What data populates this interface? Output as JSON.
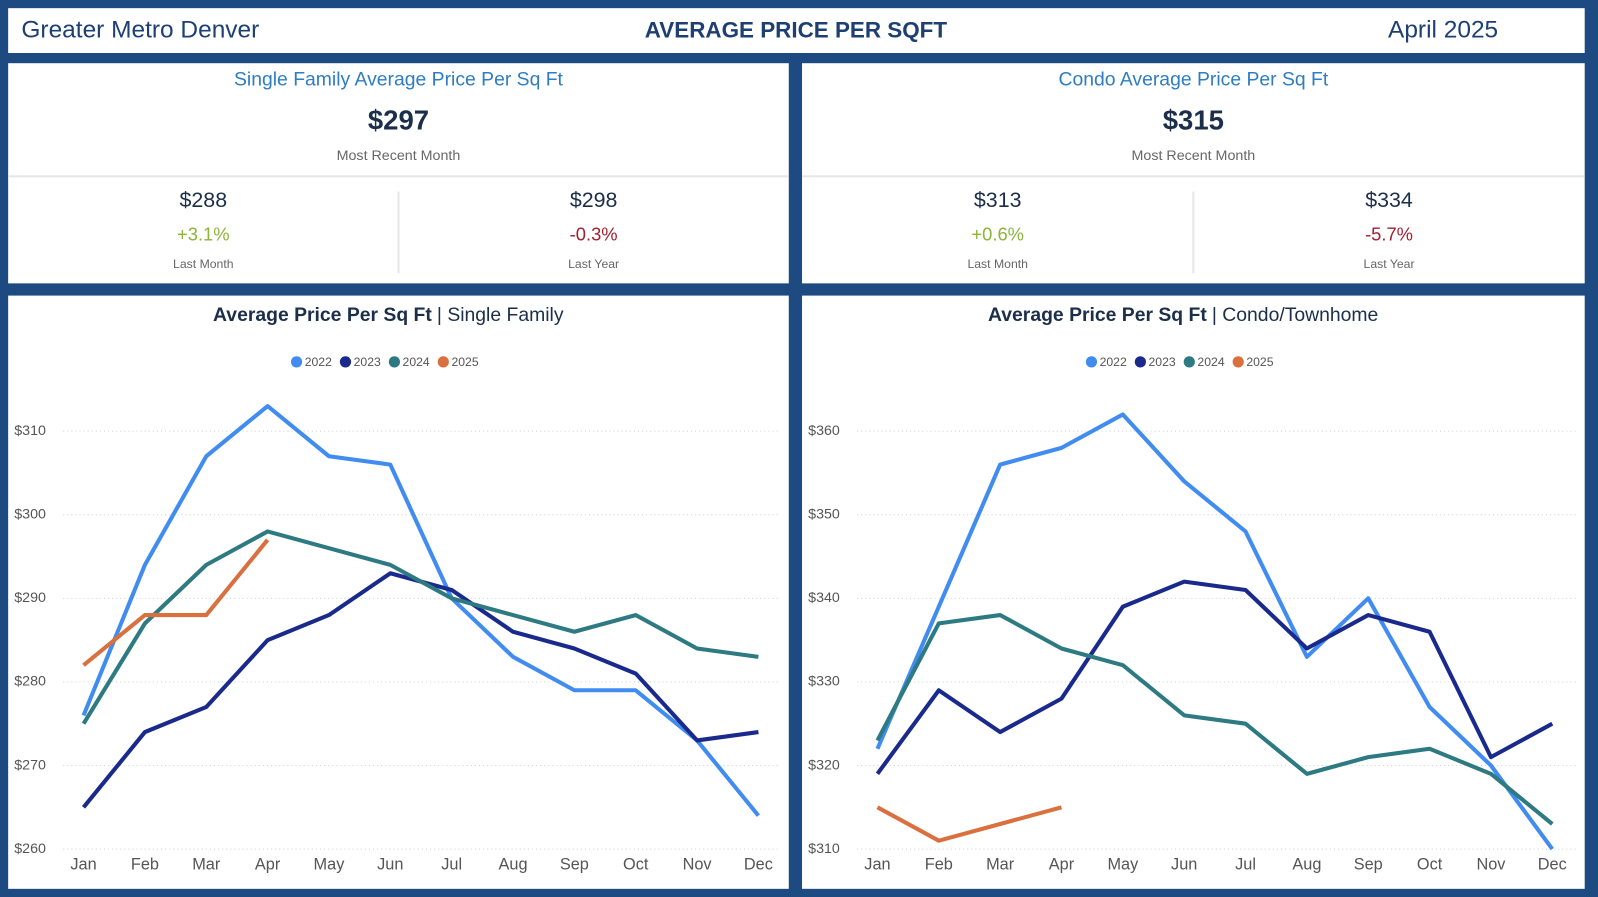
{
  "header": {
    "region": "Greater Metro Denver",
    "title": "AVERAGE PRICE PER SQFT",
    "period": "April 2025"
  },
  "cards": [
    {
      "title": "Single Family Average Price Per Sq Ft",
      "value": "$297",
      "caption": "Most Recent Month",
      "comparisons": [
        {
          "value": "$288",
          "change": "+3.1%",
          "label": "Last Month",
          "trend": "up"
        },
        {
          "value": "$298",
          "change": "-0.3%",
          "label": "Last Year",
          "trend": "down"
        }
      ]
    },
    {
      "title": "Condo Average Price Per Sq Ft",
      "value": "$315",
      "caption": "Most Recent Month",
      "comparisons": [
        {
          "value": "$313",
          "change": "+0.6%",
          "label": "Last Month",
          "trend": "up"
        },
        {
          "value": "$334",
          "change": "-5.7%",
          "label": "Last Year",
          "trend": "down"
        }
      ]
    }
  ],
  "chart_data": [
    {
      "type": "line",
      "title": "Average Price Per Sq Ft",
      "subtitle": "| Single Family",
      "categories": [
        "Jan",
        "Feb",
        "Mar",
        "Apr",
        "May",
        "Jun",
        "Jul",
        "Aug",
        "Sep",
        "Oct",
        "Nov",
        "Dec"
      ],
      "series": [
        {
          "name": "2022",
          "color": "#418cf0",
          "values": [
            276,
            294,
            307,
            313,
            307,
            306,
            290,
            283,
            279,
            279,
            273,
            264
          ]
        },
        {
          "name": "2023",
          "color": "#1a2a8c",
          "values": [
            265,
            274,
            277,
            285,
            288,
            293,
            291,
            286,
            284,
            281,
            273,
            274
          ]
        },
        {
          "name": "2024",
          "color": "#2e7a82",
          "values": [
            275,
            287,
            294,
            298,
            296,
            294,
            290,
            288,
            286,
            288,
            284,
            283
          ]
        },
        {
          "name": "2025",
          "color": "#d9703e",
          "values": [
            282,
            288,
            288,
            297,
            null,
            null,
            null,
            null,
            null,
            null,
            null,
            null
          ]
        }
      ],
      "ylim": [
        260,
        315
      ],
      "yticks": [
        {
          "value": 260,
          "label": "$260"
        },
        {
          "value": 270,
          "label": "$270"
        },
        {
          "value": 280,
          "label": "$280"
        },
        {
          "value": 290,
          "label": "$290"
        },
        {
          "value": 300,
          "label": "$300"
        },
        {
          "value": 310,
          "label": "$310"
        }
      ],
      "grid": true,
      "legend": "top"
    },
    {
      "type": "line",
      "title": "Average Price Per Sq Ft",
      "subtitle": "| Condo/Townhome",
      "categories": [
        "Jan",
        "Feb",
        "Mar",
        "Apr",
        "May",
        "Jun",
        "Jul",
        "Aug",
        "Sep",
        "Oct",
        "Nov",
        "Dec"
      ],
      "series": [
        {
          "name": "2022",
          "color": "#418cf0",
          "values": [
            322,
            339,
            356,
            358,
            362,
            354,
            348,
            333,
            340,
            327,
            320,
            310
          ]
        },
        {
          "name": "2023",
          "color": "#1a2a8c",
          "values": [
            319,
            329,
            324,
            328,
            339,
            342,
            341,
            334,
            338,
            336,
            321,
            325
          ]
        },
        {
          "name": "2024",
          "color": "#2e7a82",
          "values": [
            323,
            337,
            338,
            334,
            332,
            326,
            325,
            319,
            321,
            322,
            319,
            313
          ]
        },
        {
          "name": "2025",
          "color": "#d9703e",
          "values": [
            315,
            311,
            313,
            315,
            null,
            null,
            null,
            null,
            null,
            null,
            null,
            null
          ]
        }
      ],
      "ylim": [
        310,
        365
      ],
      "yticks": [
        {
          "value": 310,
          "label": "$310"
        },
        {
          "value": 320,
          "label": "$320"
        },
        {
          "value": 330,
          "label": "$330"
        },
        {
          "value": 340,
          "label": "$340"
        },
        {
          "value": 350,
          "label": "$350"
        },
        {
          "value": 360,
          "label": "$360"
        }
      ],
      "grid": true,
      "legend": "top"
    }
  ]
}
